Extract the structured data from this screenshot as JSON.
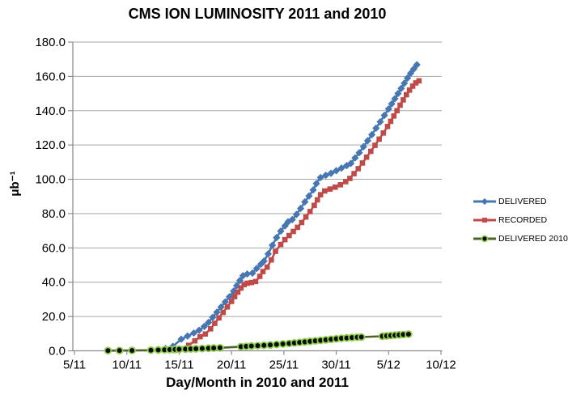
{
  "chart_data": {
    "type": "line",
    "title": "CMS ION LUMINOSITY 2011 and 2010",
    "xlabel": "Day/Month in 2010 and 2011",
    "ylabel": "μb⁻¹",
    "x_tick_labels": [
      "5/11",
      "10/11",
      "15/11",
      "20/11",
      "25/11",
      "30/11",
      "5/12",
      "10/12"
    ],
    "x_tick_days": [
      0,
      5,
      10,
      15,
      20,
      25,
      30,
      35
    ],
    "x_encoding": "point x values are days after the 5/11 tick",
    "y_ticks": [
      0,
      20,
      40,
      60,
      80,
      100,
      120,
      140,
      160,
      180
    ],
    "ylim": [
      0,
      180
    ],
    "grid": true,
    "legend_position": "right",
    "grid_color": "#A6A6A6",
    "axis_color": "#8C8C8C",
    "series": [
      {
        "name": "DELIVERED",
        "color": "#4677B2",
        "marker": "diamond",
        "points": [
          [
            7.3,
            0.2
          ],
          [
            8.0,
            0.6
          ],
          [
            8.7,
            1.3
          ],
          [
            9.4,
            2.6
          ],
          [
            10.2,
            6.8
          ],
          [
            10.8,
            8.6
          ],
          [
            11.4,
            10.4
          ],
          [
            11.9,
            12.0
          ],
          [
            12.4,
            14.2
          ],
          [
            12.8,
            16.5
          ],
          [
            13.2,
            19.5
          ],
          [
            13.6,
            22.5
          ],
          [
            14.0,
            25.5
          ],
          [
            14.4,
            28.5
          ],
          [
            14.8,
            31.5
          ],
          [
            15.2,
            34.8
          ],
          [
            15.5,
            38.0
          ],
          [
            15.8,
            41.0
          ],
          [
            16.1,
            43.8
          ],
          [
            16.5,
            44.8
          ],
          [
            17.0,
            45.3
          ],
          [
            17.4,
            48.0
          ],
          [
            17.8,
            50.5
          ],
          [
            18.1,
            52.3
          ],
          [
            18.5,
            56.5
          ],
          [
            18.9,
            61.5
          ],
          [
            19.3,
            66.0
          ],
          [
            19.7,
            69.8
          ],
          [
            20.1,
            72.8
          ],
          [
            20.4,
            75.2
          ],
          [
            20.8,
            76.5
          ],
          [
            21.2,
            79.5
          ],
          [
            21.6,
            83.0
          ],
          [
            22.0,
            86.8
          ],
          [
            22.4,
            90.3
          ],
          [
            22.8,
            93.8
          ],
          [
            23.1,
            97.5
          ],
          [
            23.5,
            101.0
          ],
          [
            24.0,
            102.3
          ],
          [
            24.5,
            103.5
          ],
          [
            25.0,
            105.0
          ],
          [
            25.5,
            106.5
          ],
          [
            26.0,
            108.0
          ],
          [
            26.4,
            109.3
          ],
          [
            26.8,
            112.5
          ],
          [
            27.2,
            115.5
          ],
          [
            27.6,
            119.0
          ],
          [
            28.0,
            122.5
          ],
          [
            28.4,
            126.0
          ],
          [
            28.8,
            129.8
          ],
          [
            29.2,
            133.5
          ],
          [
            29.6,
            137.3
          ],
          [
            30.0,
            141.0
          ],
          [
            30.3,
            144.0
          ],
          [
            30.6,
            147.0
          ],
          [
            30.9,
            150.0
          ],
          [
            31.2,
            153.0
          ],
          [
            31.5,
            156.0
          ],
          [
            31.8,
            159.0
          ],
          [
            32.1,
            161.8
          ],
          [
            32.4,
            164.3
          ],
          [
            32.7,
            166.8
          ]
        ]
      },
      {
        "name": "RECORDED",
        "color": "#BE4B48",
        "marker": "square",
        "points": [
          [
            9.6,
            0.3
          ],
          [
            10.3,
            1.1
          ],
          [
            10.9,
            3.2
          ],
          [
            11.5,
            5.8
          ],
          [
            12.0,
            8.2
          ],
          [
            12.5,
            9.8
          ],
          [
            13.0,
            12.8
          ],
          [
            13.4,
            16.0
          ],
          [
            13.8,
            19.2
          ],
          [
            14.2,
            22.4
          ],
          [
            14.6,
            25.6
          ],
          [
            15.0,
            28.8
          ],
          [
            15.3,
            31.6
          ],
          [
            15.6,
            34.2
          ],
          [
            15.9,
            36.6
          ],
          [
            16.2,
            38.6
          ],
          [
            16.5,
            39.4
          ],
          [
            16.9,
            39.8
          ],
          [
            17.3,
            40.4
          ],
          [
            17.7,
            43.4
          ],
          [
            18.0,
            46.2
          ],
          [
            18.4,
            48.8
          ],
          [
            18.8,
            53.0
          ],
          [
            19.2,
            58.0
          ],
          [
            19.7,
            62.0
          ],
          [
            20.1,
            64.8
          ],
          [
            20.5,
            67.2
          ],
          [
            20.9,
            69.6
          ],
          [
            21.3,
            72.0
          ],
          [
            21.7,
            74.8
          ],
          [
            22.1,
            78.0
          ],
          [
            22.5,
            81.2
          ],
          [
            22.9,
            84.8
          ],
          [
            23.2,
            88.0
          ],
          [
            23.5,
            91.0
          ],
          [
            23.9,
            93.2
          ],
          [
            24.4,
            94.3
          ],
          [
            24.9,
            95.4
          ],
          [
            25.4,
            96.8
          ],
          [
            25.9,
            98.6
          ],
          [
            26.3,
            100.5
          ],
          [
            26.7,
            103.3
          ],
          [
            27.1,
            106.2
          ],
          [
            27.5,
            109.5
          ],
          [
            27.9,
            112.9
          ],
          [
            28.3,
            116.3
          ],
          [
            28.7,
            119.8
          ],
          [
            29.1,
            123.4
          ],
          [
            29.5,
            127.0
          ],
          [
            29.9,
            130.8
          ],
          [
            30.2,
            133.8
          ],
          [
            30.5,
            136.9
          ],
          [
            30.8,
            140.0
          ],
          [
            31.1,
            143.2
          ],
          [
            31.4,
            146.3
          ],
          [
            31.7,
            149.3
          ],
          [
            32.0,
            152.0
          ],
          [
            32.3,
            154.3
          ],
          [
            32.6,
            156.2
          ],
          [
            32.9,
            157.4
          ]
        ]
      },
      {
        "name": "DELIVERED 2010",
        "color": "#4F6228",
        "marker": "circle",
        "marker_fill": "#0A0A0A",
        "marker_stroke": "#8FCE4E",
        "points": [
          [
            3.2,
            0.1
          ],
          [
            4.3,
            0.15
          ],
          [
            5.5,
            0.2
          ],
          [
            7.3,
            0.35
          ],
          [
            8.0,
            0.5
          ],
          [
            8.6,
            0.6
          ],
          [
            9.1,
            0.7
          ],
          [
            9.6,
            0.8
          ],
          [
            10.0,
            0.9
          ],
          [
            10.6,
            1.0
          ],
          [
            11.1,
            1.1
          ],
          [
            11.6,
            1.2
          ],
          [
            12.2,
            1.35
          ],
          [
            12.8,
            1.5
          ],
          [
            13.3,
            1.6
          ],
          [
            13.9,
            1.75
          ],
          [
            15.9,
            2.4
          ],
          [
            16.4,
            2.6
          ],
          [
            16.9,
            2.8
          ],
          [
            17.5,
            3.0
          ],
          [
            18.1,
            3.2
          ],
          [
            18.7,
            3.4
          ],
          [
            19.3,
            3.7
          ],
          [
            19.9,
            4.0
          ],
          [
            20.5,
            4.3
          ],
          [
            21.0,
            4.6
          ],
          [
            21.5,
            4.9
          ],
          [
            22.0,
            5.2
          ],
          [
            22.5,
            5.5
          ],
          [
            23.0,
            5.8
          ],
          [
            23.5,
            6.1
          ],
          [
            24.0,
            6.4
          ],
          [
            24.5,
            6.7
          ],
          [
            25.0,
            7.0
          ],
          [
            25.5,
            7.3
          ],
          [
            26.0,
            7.5
          ],
          [
            26.5,
            7.7
          ],
          [
            27.0,
            7.9
          ],
          [
            27.4,
            8.0
          ],
          [
            29.4,
            8.5
          ],
          [
            29.8,
            8.7
          ],
          [
            30.2,
            8.9
          ],
          [
            30.6,
            9.1
          ],
          [
            31.0,
            9.3
          ],
          [
            31.4,
            9.5
          ],
          [
            31.9,
            9.7
          ]
        ]
      }
    ]
  }
}
